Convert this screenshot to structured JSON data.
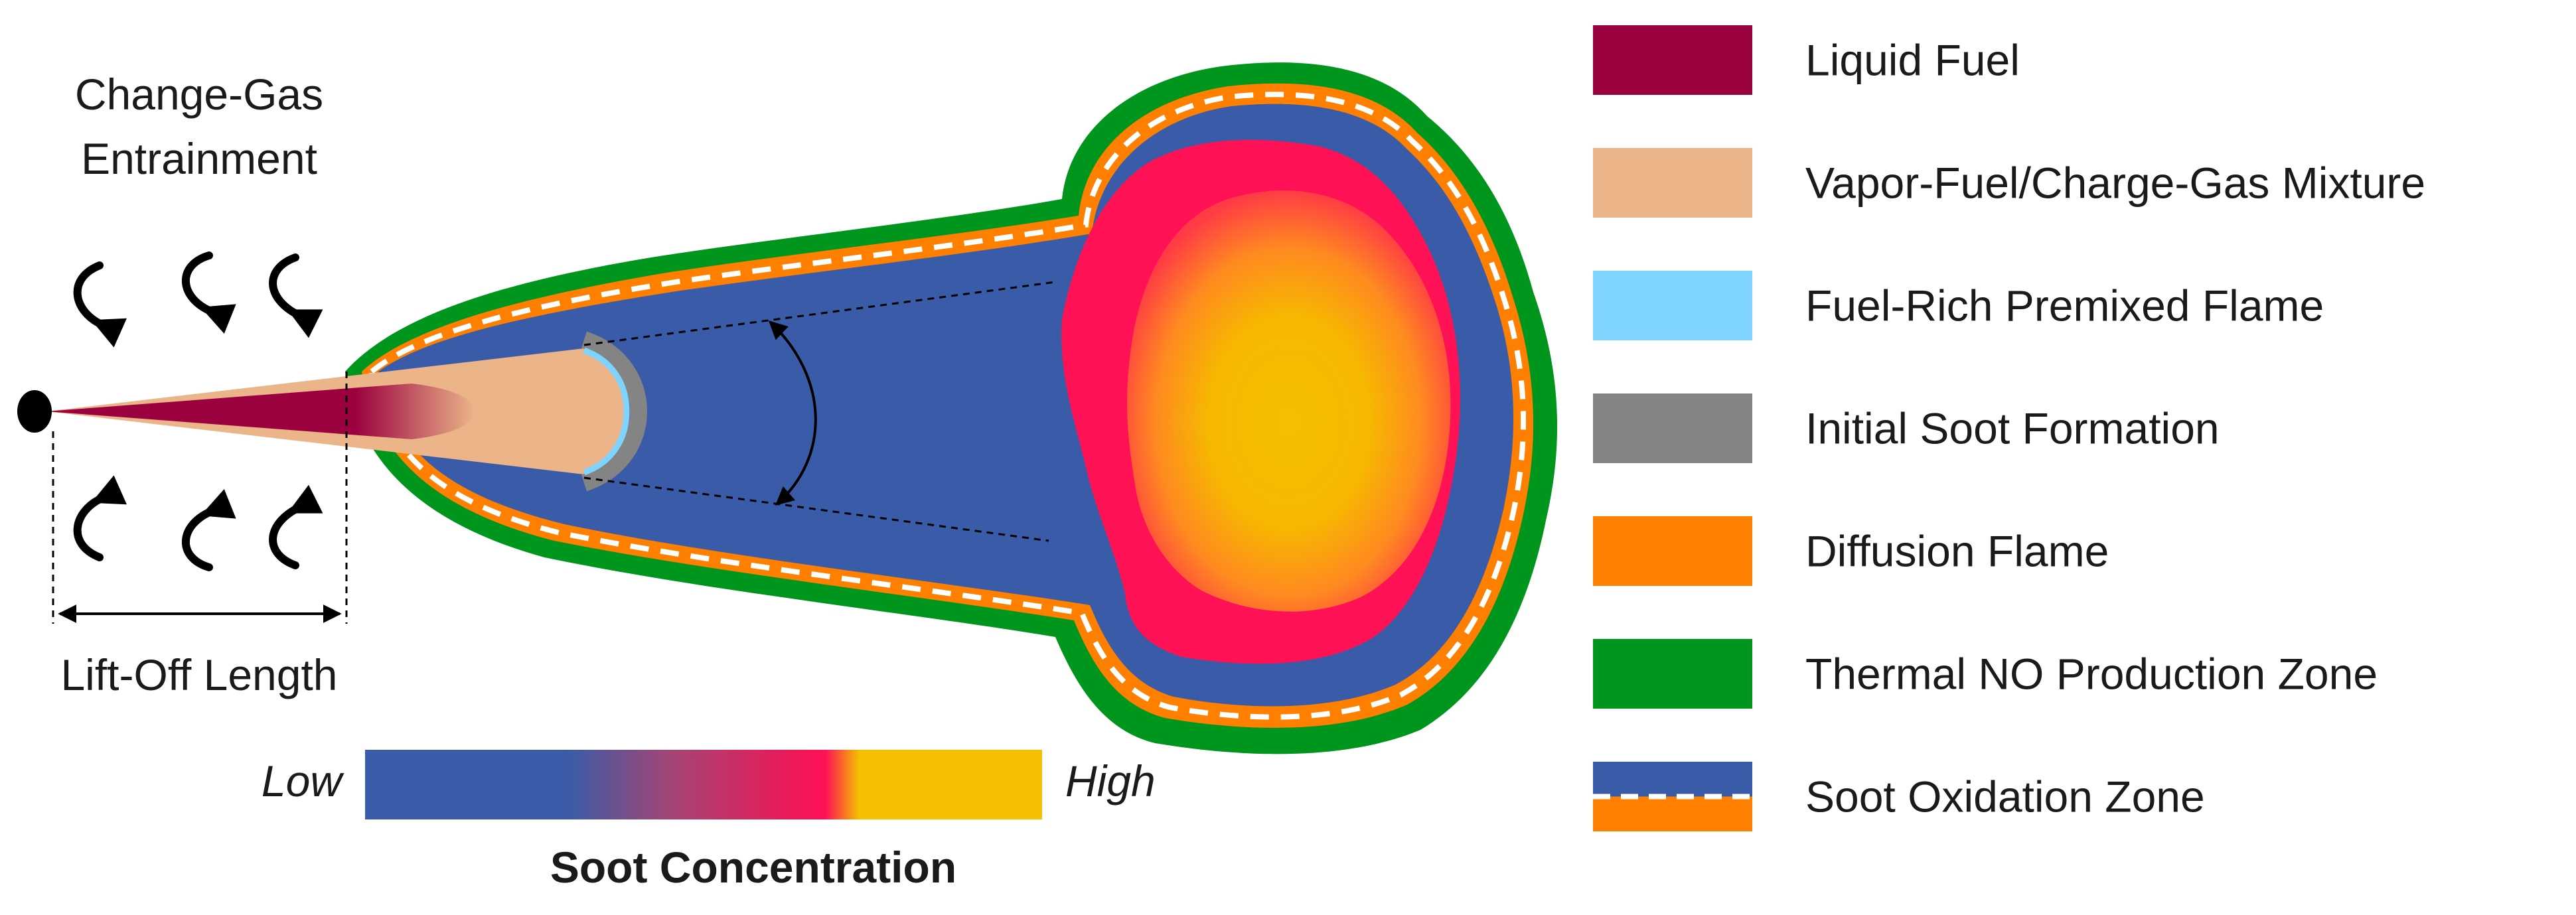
{
  "entrainment_label": [
    "Change-Gas",
    "Entrainment"
  ],
  "liftoff_label": "Lift-Off Length",
  "scale": {
    "low_label": "Low",
    "high_label": "High",
    "title": "Soot Concentration"
  },
  "legend": [
    {
      "label": "Liquid Fuel",
      "color": "#9b003f",
      "kind": "solid"
    },
    {
      "label": "Vapor-Fuel/Charge-Gas Mixture",
      "color": "#ebb589",
      "kind": "solid"
    },
    {
      "label": "Fuel-Rich Premixed Flame",
      "color": "#7fd3ff",
      "kind": "solid"
    },
    {
      "label": "Initial Soot Formation",
      "color": "#848484",
      "kind": "solid"
    },
    {
      "label": "Diffusion Flame",
      "color": "#ff7f00",
      "kind": "solid"
    },
    {
      "label": "Thermal NO Production Zone",
      "color": "#00961e",
      "kind": "solid"
    },
    {
      "label": "Soot Oxidation Zone",
      "color": "#3a5ca8",
      "kind": "split",
      "color2": "#ff7f00"
    }
  ],
  "colors": {
    "soot_low": "#3a5ca8",
    "soot_mid": "#ff1155",
    "soot_high": "#f4c000",
    "soot_oxidation": "#3a5ca8",
    "diffusion_flame": "#ff7f00",
    "thermal_no": "#00961e"
  }
}
